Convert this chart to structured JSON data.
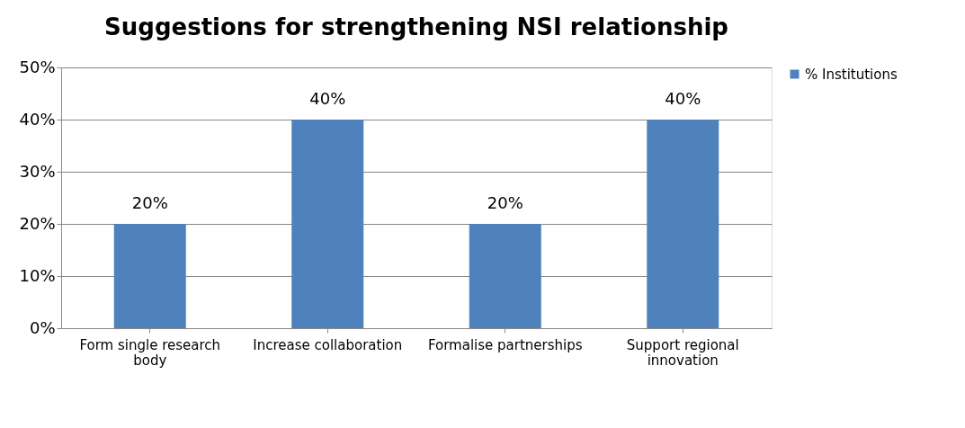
{
  "chart_data": {
    "type": "bar",
    "title": "Suggestions for strengthening NSI relationship",
    "categories": [
      "Form single research body",
      "Increase collaboration",
      "Formalise partnerships",
      "Support regional innovation"
    ],
    "series": [
      {
        "name": "% Institutions",
        "color": "#4f81bd",
        "values": [
          20,
          40,
          20,
          40
        ],
        "value_labels": [
          "20%",
          "40%",
          "20%",
          "40%"
        ]
      }
    ],
    "ylim": [
      0,
      50
    ],
    "yticks": [
      {
        "value": 0,
        "label": "0%"
      },
      {
        "value": 10,
        "label": "10%"
      },
      {
        "value": 20,
        "label": "20%"
      },
      {
        "value": 30,
        "label": "30%"
      },
      {
        "value": 40,
        "label": "40%"
      },
      {
        "value": 50,
        "label": "50%"
      }
    ],
    "grid": "y",
    "legend": "right"
  }
}
